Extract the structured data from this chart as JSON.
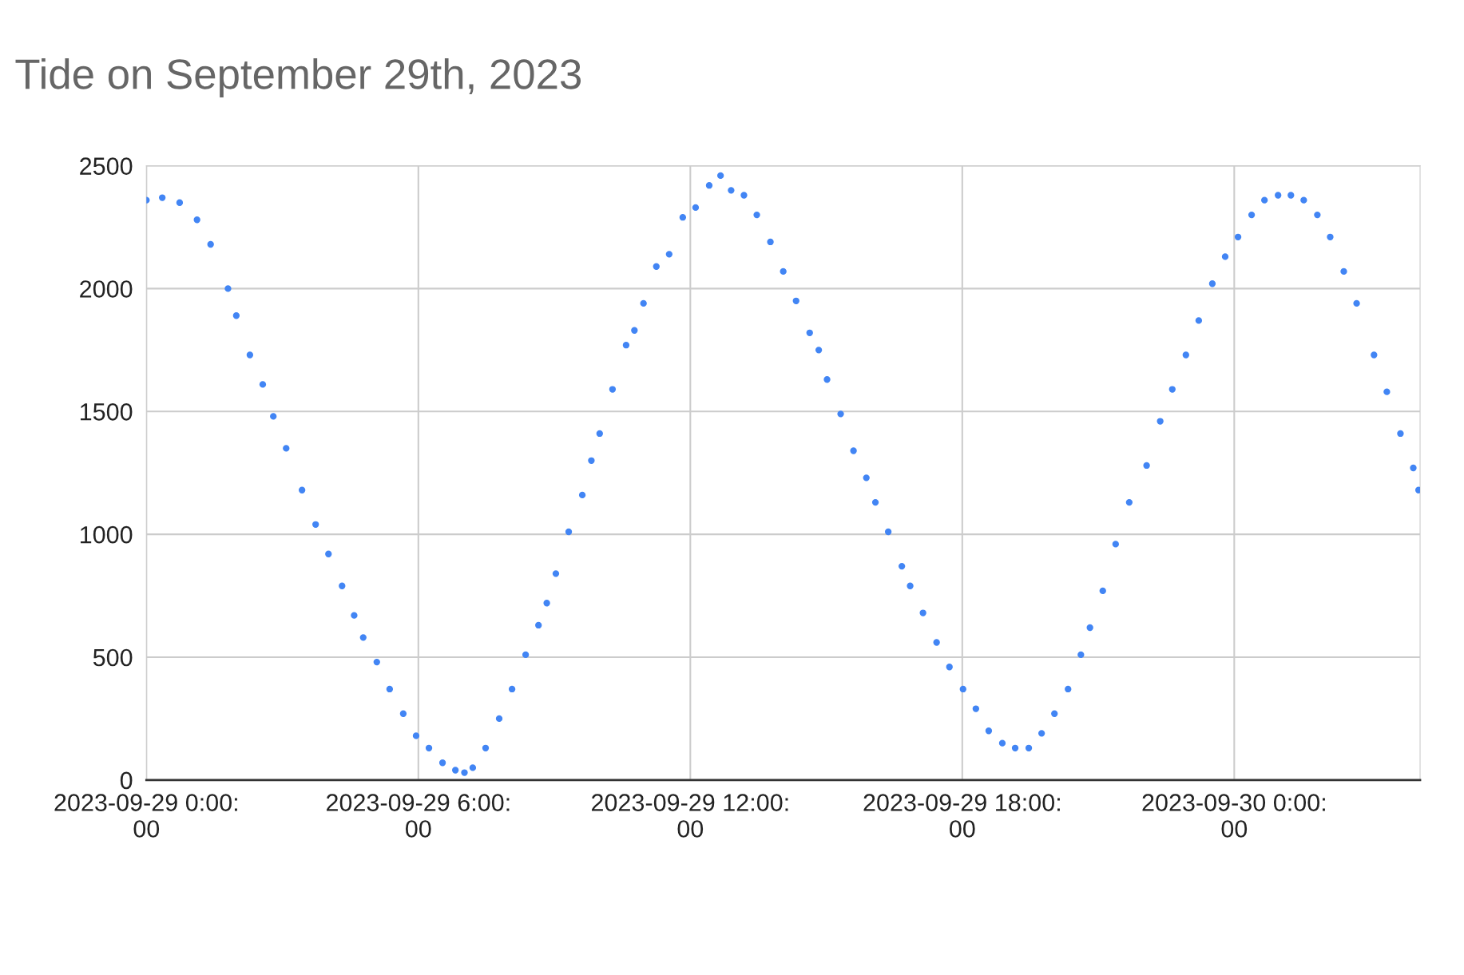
{
  "chart_data": {
    "type": "scatter",
    "title": "Tide on September 29th, 2023",
    "x": [
      "2023-09-29T00:00",
      "2023-09-29T00:21",
      "2023-09-29T00:44",
      "2023-09-29T01:07",
      "2023-09-29T01:25",
      "2023-09-29T01:48",
      "2023-09-29T01:59",
      "2023-09-29T02:17",
      "2023-09-29T02:34",
      "2023-09-29T02:48",
      "2023-09-29T03:05",
      "2023-09-29T03:26",
      "2023-09-29T03:44",
      "2023-09-29T04:01",
      "2023-09-29T04:19",
      "2023-09-29T04:35",
      "2023-09-29T04:47",
      "2023-09-29T05:05",
      "2023-09-29T05:22",
      "2023-09-29T05:40",
      "2023-09-29T05:57",
      "2023-09-29T06:14",
      "2023-09-29T06:32",
      "2023-09-29T06:49",
      "2023-09-29T07:01",
      "2023-09-29T07:12",
      "2023-09-29T07:29",
      "2023-09-29T07:47",
      "2023-09-29T08:04",
      "2023-09-29T08:22",
      "2023-09-29T08:39",
      "2023-09-29T08:50",
      "2023-09-29T09:02",
      "2023-09-29T09:19",
      "2023-09-29T09:37",
      "2023-09-29T09:49",
      "2023-09-29T10:00",
      "2023-09-29T10:17",
      "2023-09-29T10:35",
      "2023-09-29T10:46",
      "2023-09-29T10:58",
      "2023-09-29T11:15",
      "2023-09-29T11:32",
      "2023-09-29T11:50",
      "2023-09-29T12:07",
      "2023-09-29T12:25",
      "2023-09-29T12:40",
      "2023-09-29T12:54",
      "2023-09-29T13:11",
      "2023-09-29T13:28",
      "2023-09-29T13:46",
      "2023-09-29T14:03",
      "2023-09-29T14:20",
      "2023-09-29T14:38",
      "2023-09-29T14:50",
      "2023-09-29T15:01",
      "2023-09-29T15:19",
      "2023-09-29T15:36",
      "2023-09-29T15:53",
      "2023-09-29T16:05",
      "2023-09-29T16:22",
      "2023-09-29T16:40",
      "2023-09-29T16:51",
      "2023-09-29T17:08",
      "2023-09-29T17:26",
      "2023-09-29T17:43",
      "2023-09-29T18:01",
      "2023-09-29T18:18",
      "2023-09-29T18:35",
      "2023-09-29T18:53",
      "2023-09-29T19:10",
      "2023-09-29T19:28",
      "2023-09-29T19:45",
      "2023-09-29T20:02",
      "2023-09-29T20:20",
      "2023-09-29T20:37",
      "2023-09-29T20:49",
      "2023-09-29T21:06",
      "2023-09-29T21:23",
      "2023-09-29T21:41",
      "2023-09-29T22:04",
      "2023-09-29T22:22",
      "2023-09-29T22:38",
      "2023-09-29T22:56",
      "2023-09-29T23:13",
      "2023-09-29T23:31",
      "2023-09-29T23:48",
      "2023-09-30T00:05",
      "2023-09-30T00:23",
      "2023-09-30T00:40",
      "2023-09-30T00:58",
      "2023-09-30T01:15",
      "2023-09-30T01:32",
      "2023-09-30T01:50",
      "2023-09-30T02:07",
      "2023-09-30T02:25",
      "2023-09-30T02:42",
      "2023-09-30T03:05",
      "2023-09-30T03:22",
      "2023-09-30T03:40",
      "2023-09-30T03:57",
      "2023-09-30T04:04"
    ],
    "series": [
      {
        "color": "#4285f4",
        "values": [
          2360,
          2370,
          2350,
          2280,
          2180,
          2000,
          1890,
          1730,
          1610,
          1480,
          1350,
          1180,
          1040,
          920,
          790,
          670,
          580,
          480,
          370,
          270,
          180,
          130,
          70,
          40,
          30,
          50,
          130,
          250,
          370,
          510,
          630,
          720,
          840,
          1010,
          1160,
          1300,
          1410,
          1590,
          1770,
          1830,
          1940,
          2090,
          2140,
          2290,
          2330,
          2420,
          2460,
          2400,
          2380,
          2300,
          2190,
          2070,
          1950,
          1820,
          1750,
          1630,
          1490,
          1340,
          1230,
          1130,
          1010,
          870,
          790,
          680,
          560,
          460,
          370,
          290,
          200,
          150,
          130,
          130,
          190,
          270,
          370,
          510,
          620,
          770,
          960,
          1130,
          1280,
          1460,
          1590,
          1730,
          1870,
          2020,
          2130,
          2210,
          2300,
          2360,
          2380,
          2380,
          2360,
          2300,
          2210,
          2070,
          1940,
          1730,
          1580,
          1410,
          1270,
          1180
        ]
      }
    ],
    "xlim": [
      "2023-09-29T00:00",
      "2023-09-30T04:06"
    ],
    "xticks": [
      {
        "value": "2023-09-29T00:00",
        "label": "2023-09-29 0:00:\n00"
      },
      {
        "value": "2023-09-29T06:00",
        "label": "2023-09-29 6:00:\n00"
      },
      {
        "value": "2023-09-29T12:00",
        "label": "2023-09-29 12:00:\n00"
      },
      {
        "value": "2023-09-29T18:00",
        "label": "2023-09-29 18:00:\n00"
      },
      {
        "value": "2023-09-30T00:00",
        "label": "2023-09-30 0:00:\n00"
      }
    ],
    "ylim": [
      0,
      2500
    ],
    "yticks": [
      0,
      500,
      1000,
      1500,
      2000,
      2500
    ],
    "grid": true,
    "marker": "circle",
    "legend": false
  }
}
